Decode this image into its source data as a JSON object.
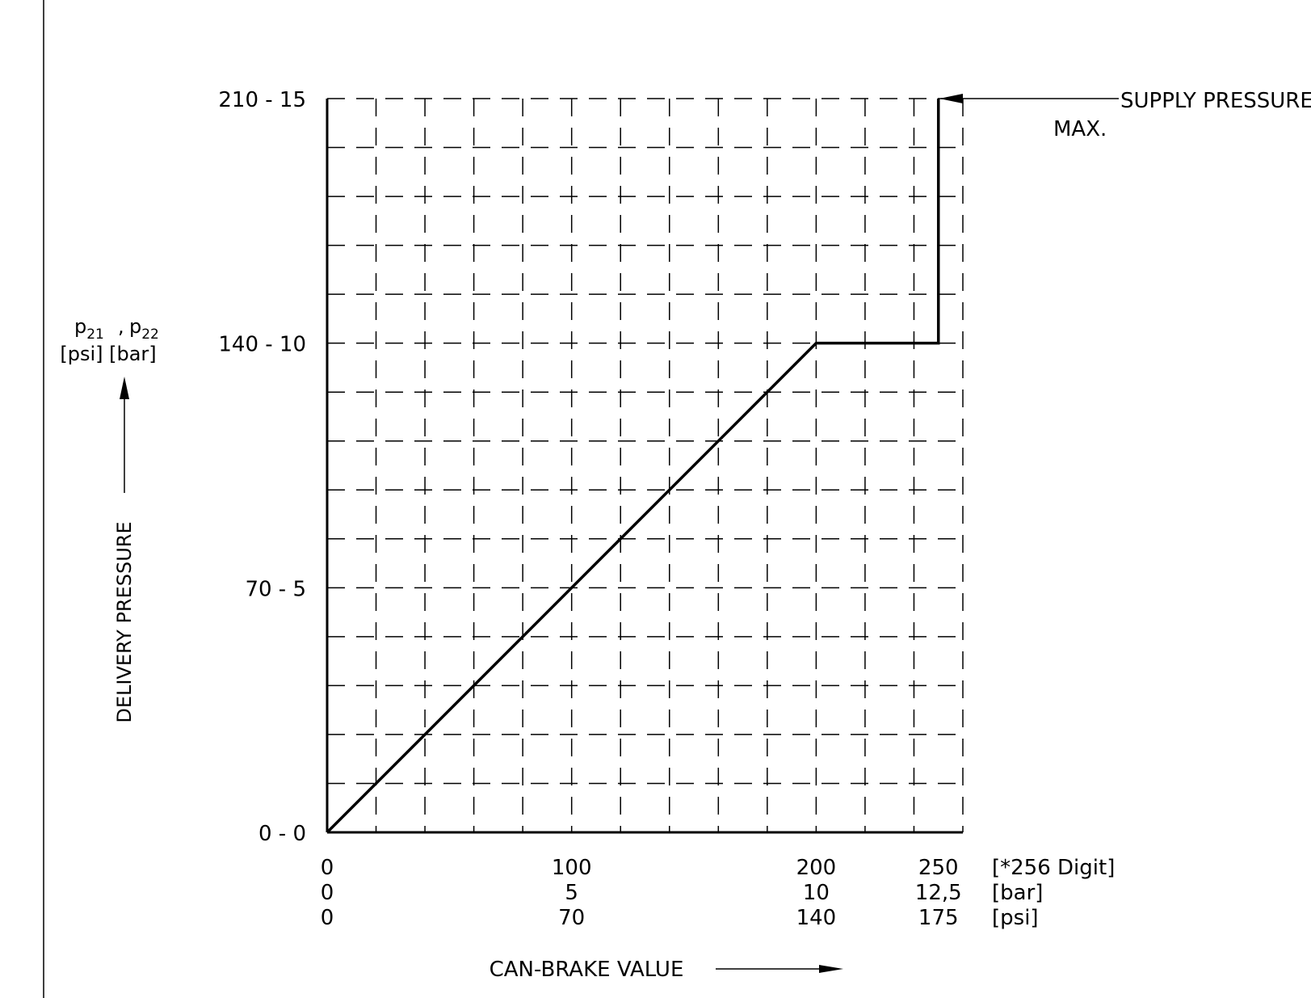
{
  "chart_data": {
    "type": "line",
    "xlabel": "CAN-BRAKE VALUE",
    "ylabel": "DELIVERY PRESSURE",
    "ylabel_symbols": {
      "p1": "p",
      "s1": "21",
      "sep": ",",
      "p2": "p",
      "s2": "22"
    },
    "ylabel_units": "[psi] [bar]",
    "x_range": [
      0,
      260
    ],
    "y_range": [
      0,
      15
    ],
    "x_ticks": [
      0,
      100,
      200,
      250
    ],
    "x_tick_rows": [
      {
        "unit": "[*256 Digit]",
        "labels": [
          "0",
          "100",
          "200",
          "250"
        ]
      },
      {
        "unit": "[bar]",
        "labels": [
          "0",
          "5",
          "10",
          "12,5"
        ]
      },
      {
        "unit": "[psi]",
        "labels": [
          "0",
          "70",
          "140",
          "175"
        ]
      }
    ],
    "y_ticks": [
      0,
      5,
      10,
      15
    ],
    "y_tick_labels": [
      "0 - 0",
      "70 - 5",
      "140 - 10",
      "210 - 15"
    ],
    "grid": true,
    "series": [
      {
        "x": [
          0,
          200,
          250,
          250
        ],
        "y": [
          0,
          10,
          10,
          15
        ]
      }
    ],
    "annotation": {
      "line1": "SUPPLY PRESSURE",
      "line2": "MAX."
    }
  }
}
